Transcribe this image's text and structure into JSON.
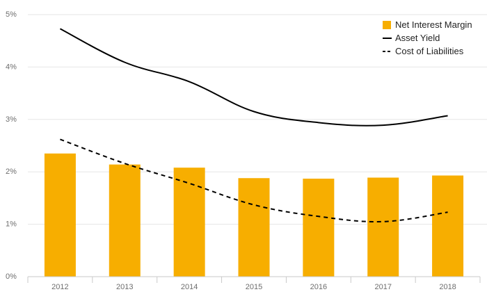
{
  "chart_data": {
    "type": "bar",
    "title": "",
    "xlabel": "",
    "ylabel": "",
    "categories": [
      "2012",
      "2013",
      "2014",
      "2015",
      "2016",
      "2017",
      "2018"
    ],
    "ylim": [
      0,
      5
    ],
    "y_ticks": [
      "0%",
      "1%",
      "2%",
      "3%",
      "4%",
      "5%"
    ],
    "grid": "horizontal",
    "legend_position": "top-right",
    "series": [
      {
        "name": "Net Interest Margin",
        "kind": "bar",
        "color": "#f7ae00",
        "values": [
          2.35,
          2.14,
          2.08,
          1.88,
          1.87,
          1.89,
          1.93
        ]
      },
      {
        "name": "Asset Yield",
        "kind": "line",
        "style": "solid",
        "color": "#000000",
        "values": [
          4.73,
          4.09,
          3.72,
          3.15,
          2.94,
          2.89,
          3.07
        ]
      },
      {
        "name": "Cost of Liabilities",
        "kind": "line",
        "style": "dashed",
        "color": "#000000",
        "values": [
          2.62,
          2.16,
          1.78,
          1.37,
          1.15,
          1.05,
          1.23
        ]
      }
    ]
  }
}
